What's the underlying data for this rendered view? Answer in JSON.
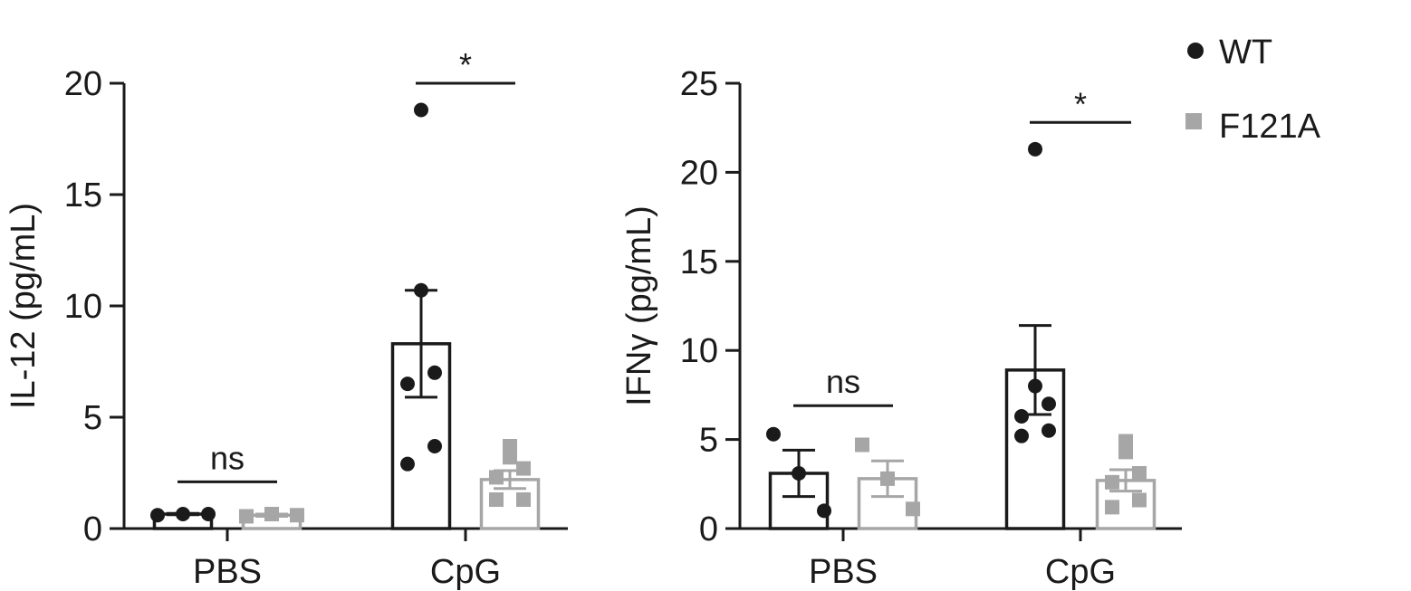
{
  "colors": {
    "wt": "#1a1a1a",
    "f121a": "#a6a6a6"
  },
  "legend": {
    "items": [
      {
        "label": "WT",
        "marker": "circle",
        "color": "#1a1a1a"
      },
      {
        "label": "F121A",
        "marker": "square",
        "color": "#a6a6a6"
      }
    ]
  },
  "chart_data": [
    {
      "type": "bar",
      "ylabel": "IL-12 (pg/mL)",
      "ylim": [
        0,
        20
      ],
      "yticks": [
        0,
        5,
        10,
        15,
        20
      ],
      "categories": [
        "PBS",
        "CpG"
      ],
      "series": [
        {
          "name": "WT",
          "values": [
            0.65,
            8.3
          ],
          "sem": [
            0.03,
            2.4
          ],
          "points": [
            [
              0.6,
              0.65,
              0.65
            ],
            [
              18.8,
              10.7,
              7.0,
              6.5,
              3.7,
              2.9
            ]
          ]
        },
        {
          "name": "F121A",
          "values": [
            0.6,
            2.2
          ],
          "sem": [
            0.05,
            0.4
          ],
          "points": [
            [
              0.55,
              0.65,
              0.6
            ],
            [
              3.7,
              3.2,
              2.7,
              2.3,
              1.3,
              1.3
            ]
          ]
        }
      ],
      "significance": [
        {
          "category": "PBS",
          "label": "ns",
          "y": 2.1
        },
        {
          "category": "CpG",
          "label": "*",
          "y": 20.0
        }
      ]
    },
    {
      "type": "bar",
      "ylabel": "IFNγ (pg/mL)",
      "ylim": [
        0,
        25
      ],
      "yticks": [
        0,
        5,
        10,
        15,
        20,
        25
      ],
      "categories": [
        "PBS",
        "CpG"
      ],
      "series": [
        {
          "name": "WT",
          "values": [
            3.1,
            8.9
          ],
          "sem": [
            1.3,
            2.5
          ],
          "points": [
            [
              5.3,
              3.1,
              1.0
            ],
            [
              21.3,
              8.0,
              7.0,
              6.3,
              5.5,
              5.2
            ]
          ]
        },
        {
          "name": "F121A",
          "values": [
            2.8,
            2.7
          ],
          "sem": [
            1.0,
            0.6
          ],
          "points": [
            [
              4.7,
              2.8,
              1.1
            ],
            [
              4.9,
              4.3,
              3.1,
              2.6,
              1.6,
              1.2
            ]
          ]
        }
      ],
      "significance": [
        {
          "category": "PBS",
          "label": "ns",
          "y": 6.9
        },
        {
          "category": "CpG",
          "label": "*",
          "y": 22.8
        }
      ]
    }
  ]
}
